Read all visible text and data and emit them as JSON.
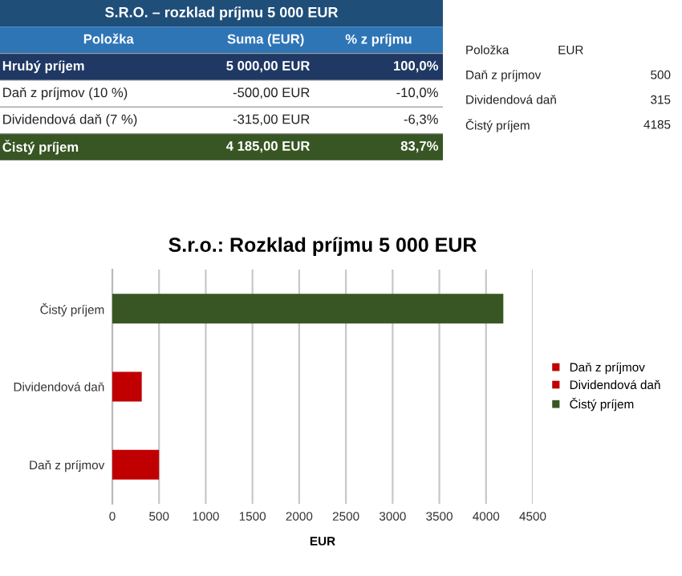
{
  "chart_data": [
    {
      "type": "other",
      "title": "S.R.O. – rozklad príjmu 5 000 EUR",
      "annotations": [
        "Položka",
        "Suma (EUR)",
        "% z príjmu",
        "Hrubý príjem",
        "5 000,00 EUR",
        "100,0%",
        "Daň z príjmov (10 %)",
        "-500,00 EUR",
        "-10,0%",
        "Dividendová daň (7 %)",
        "-315,00 EUR",
        "-6,3%",
        "Čistý príjem",
        "4 185,00 EUR",
        "83,7%"
      ]
    },
    {
      "type": "other",
      "annotations": [
        "Položka",
        "EUR",
        "Daň z príjmov",
        "500",
        "Dividendová daň",
        "315",
        "Čistý príjem",
        "4185"
      ]
    },
    {
      "type": "bar",
      "orientation": "horizontal",
      "title": "S.r.o.: Rozklad príjmu 5 000 EUR",
      "xlabel": "EUR",
      "categories": [
        "Čistý príjem",
        "Dividendová daň",
        "Daň z príjmov"
      ],
      "series": [
        {
          "name": "Daň z príjmov",
          "color": "#c00000",
          "values": [
            null,
            null,
            500
          ]
        },
        {
          "name": "Dividendová daň",
          "color": "#c00000",
          "values": [
            null,
            315,
            null
          ]
        },
        {
          "name": "Čistý príjem",
          "color": "#375623",
          "values": [
            4185,
            null,
            null
          ]
        }
      ],
      "xlim": [
        0,
        4500
      ],
      "xticks": [
        0,
        500,
        1000,
        1500,
        2000,
        2500,
        3000,
        3500,
        4000,
        4500
      ],
      "grid": "x",
      "legend": "right"
    }
  ]
}
